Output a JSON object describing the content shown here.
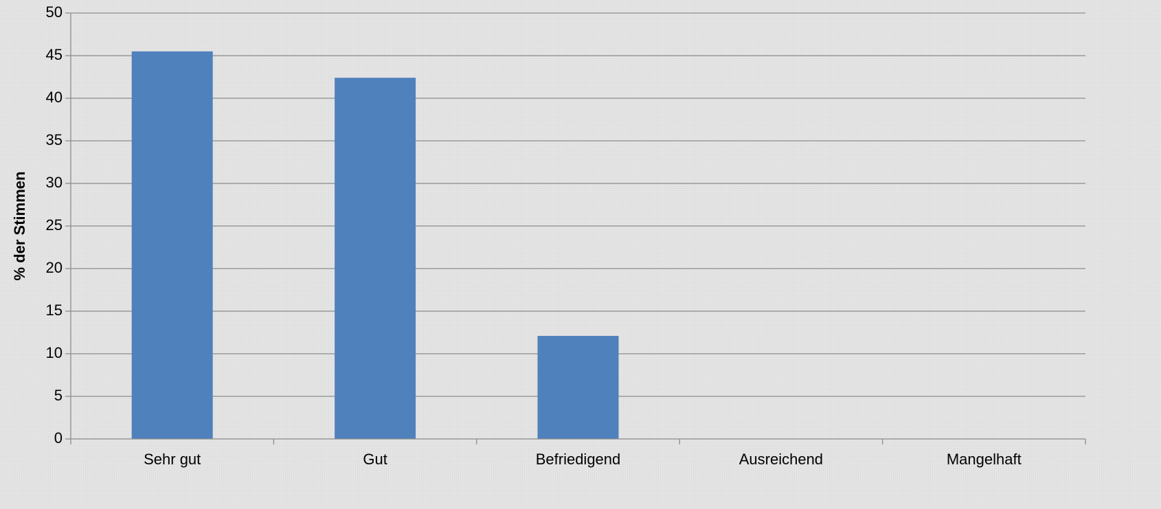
{
  "chart_data": {
    "type": "bar",
    "categories": [
      "Sehr gut",
      "Gut",
      "Befriedigend",
      "Ausreichend",
      "Mangelhaft"
    ],
    "values": [
      45.5,
      42.4,
      12.1,
      0,
      0
    ],
    "ylabel": "% der Stimmen",
    "xlabel": "",
    "ylim": [
      0,
      50
    ],
    "yticks": [
      0,
      5,
      10,
      15,
      20,
      25,
      30,
      35,
      40,
      45,
      50
    ],
    "grid": true,
    "legend": "none",
    "bar_color": "#4f81bd"
  }
}
